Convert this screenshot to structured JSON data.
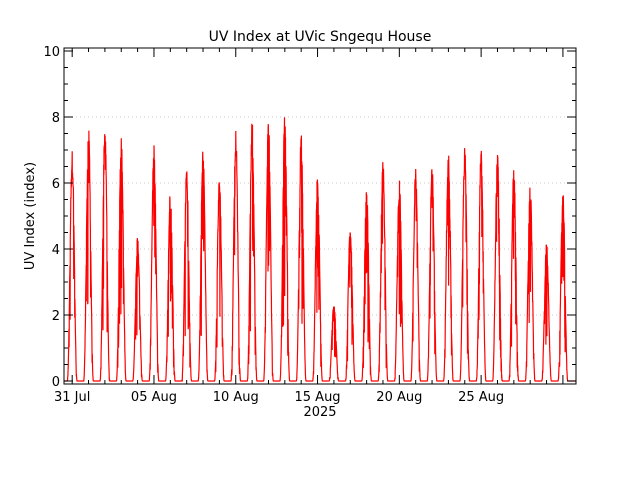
{
  "chart_data": {
    "type": "line",
    "title": "UV Index at UVic Sngequ House",
    "ylabel": "UV Index (index)",
    "xlabel": "2025",
    "ylim": [
      0,
      10
    ],
    "yticks": [
      0,
      2,
      4,
      6,
      8,
      10
    ],
    "xticks": [
      {
        "day": 0,
        "label": "31 Jul"
      },
      {
        "day": 5,
        "label": "05 Aug"
      },
      {
        "day": 10,
        "label": "10 Aug"
      },
      {
        "day": 15,
        "label": "15 Aug"
      },
      {
        "day": 20,
        "label": "20 Aug"
      },
      {
        "day": 25,
        "label": "25 Aug"
      }
    ],
    "x_range_days": [
      -0.5,
      30.8
    ],
    "grid": "horizontal dotted",
    "series": [
      {
        "color": "#ff0000",
        "daily_peak_uv": [
          7.0,
          7.7,
          7.8,
          7.4,
          4.4,
          7.2,
          5.8,
          6.5,
          7.1,
          6.2,
          7.6,
          7.9,
          8.0,
          8.3,
          7.5,
          6.3,
          2.4,
          4.8,
          5.8,
          6.7,
          6.1,
          6.5,
          6.6,
          7.0,
          7.1,
          7.0,
          7.0,
          6.5,
          6.0,
          4.2,
          5.7
        ]
      }
    ]
  }
}
